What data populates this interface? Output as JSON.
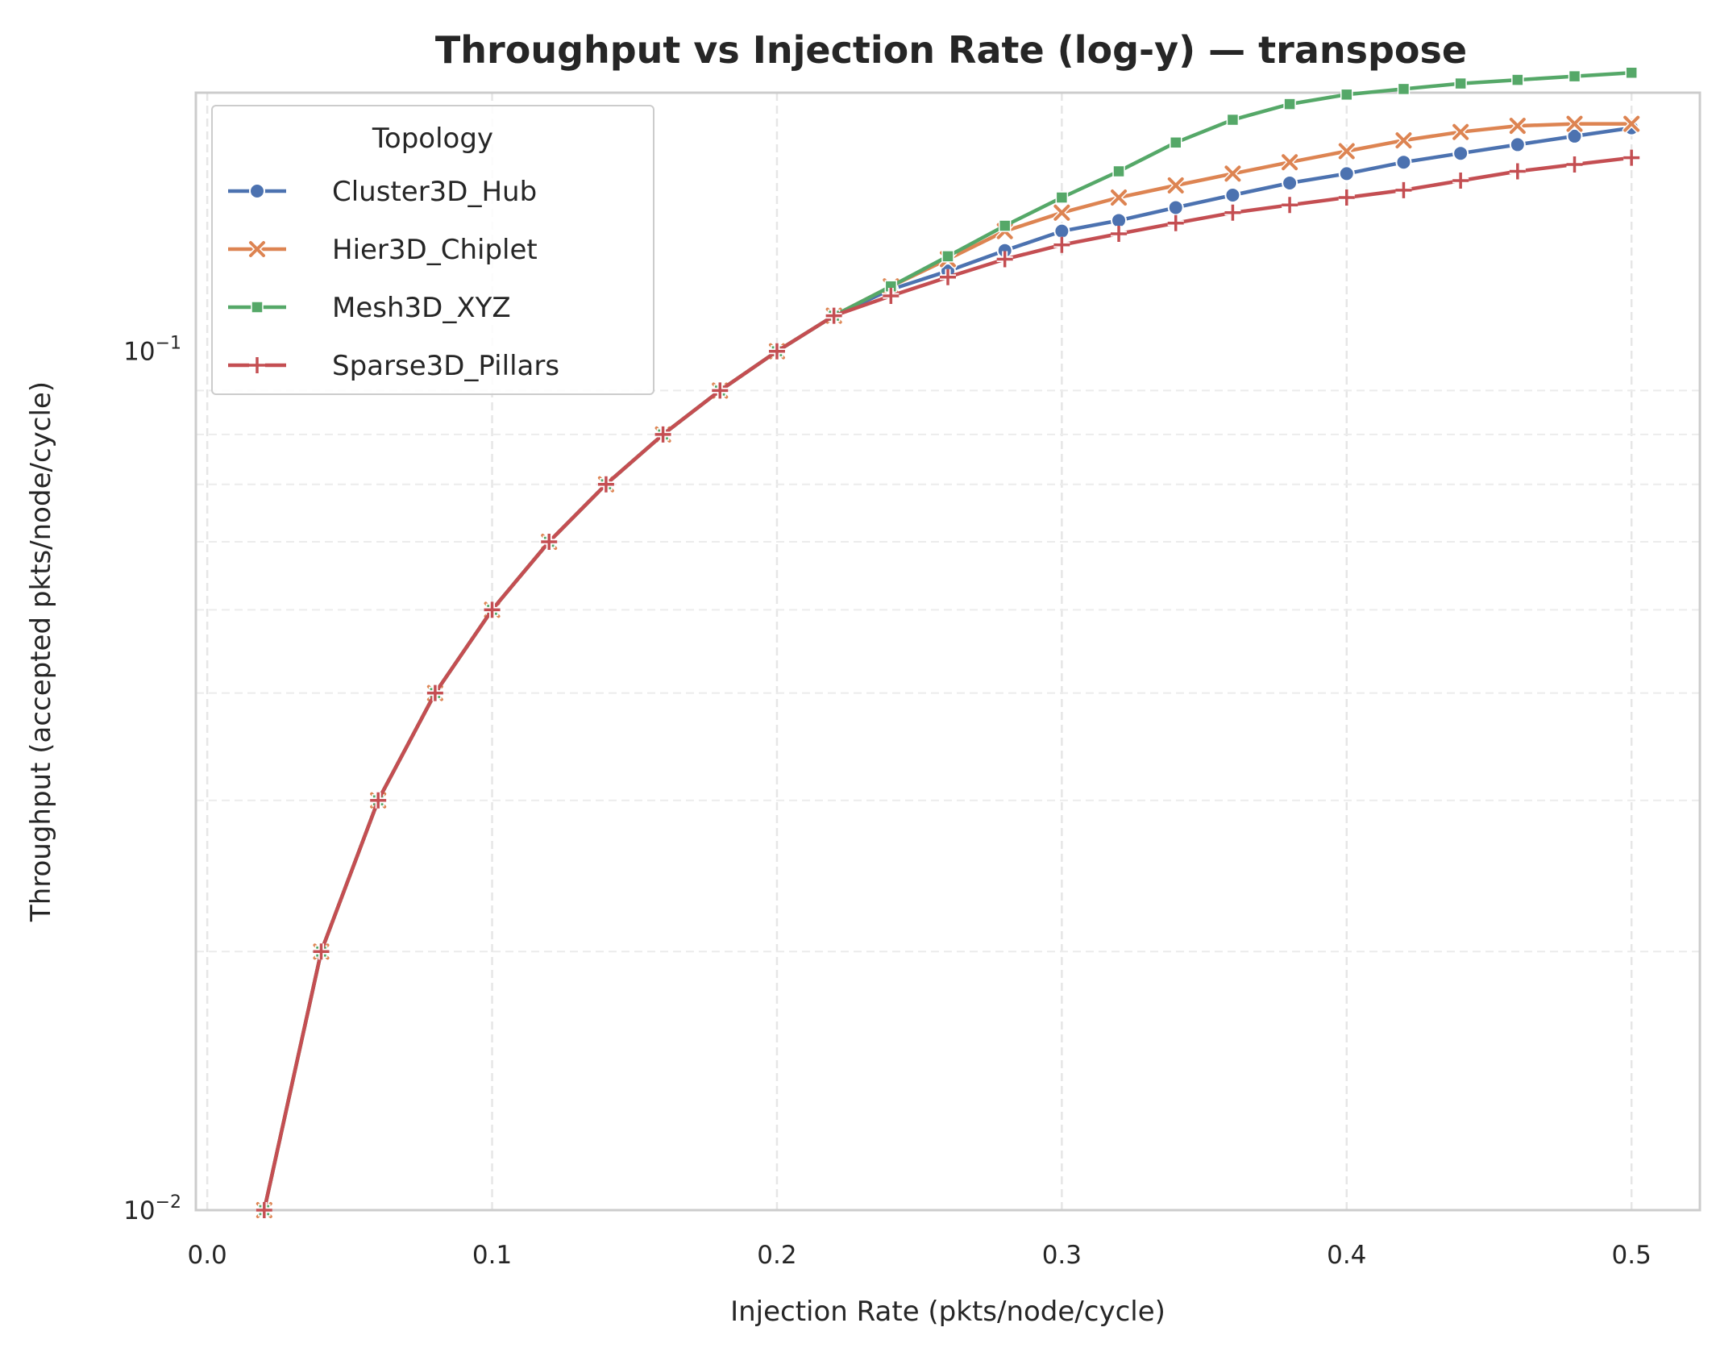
{
  "chart_data": {
    "type": "line",
    "title": "Throughput vs Injection Rate (log-y) — transpose",
    "xlabel": "Injection Rate (pkts/node/cycle)",
    "ylabel": "Throughput (accepted pkts/node/cycle)",
    "xlim": [
      -0.004,
      0.524
    ],
    "ylim": [
      0.01,
      0.2
    ],
    "yscale": "log",
    "grid": true,
    "x_ticks": [
      0.0,
      0.1,
      0.2,
      0.3,
      0.4,
      0.5
    ],
    "x_tick_labels": [
      "0.0",
      "0.1",
      "0.2",
      "0.3",
      "0.4",
      "0.5"
    ],
    "y_tick_labels": [
      {
        "value": 0.1,
        "base": "10",
        "exp": "−1"
      },
      {
        "value": 0.01,
        "base": "10",
        "exp": "−2"
      }
    ],
    "legend": {
      "title": "Topology",
      "placement": "top-left"
    },
    "x": [
      0.02,
      0.04,
      0.06,
      0.08,
      0.1,
      0.12,
      0.14,
      0.16,
      0.18,
      0.2,
      0.22,
      0.24,
      0.26,
      0.28,
      0.3,
      0.32,
      0.34,
      0.36,
      0.38,
      0.4,
      0.42,
      0.44,
      0.46,
      0.48,
      0.5
    ],
    "series": [
      {
        "name": "Cluster3D_Hub",
        "color": "#4c72b0",
        "marker": "circle",
        "values": [
          0.01,
          0.02,
          0.03,
          0.04,
          0.05,
          0.06,
          0.07,
          0.08,
          0.09,
          0.1,
          0.11,
          0.118,
          0.124,
          0.131,
          0.138,
          0.142,
          0.147,
          0.152,
          0.157,
          0.161,
          0.166,
          0.17,
          0.174,
          0.178,
          0.182
        ]
      },
      {
        "name": "Hier3D_Chiplet",
        "color": "#dd8452",
        "marker": "x",
        "values": [
          0.01,
          0.02,
          0.03,
          0.04,
          0.05,
          0.06,
          0.07,
          0.08,
          0.09,
          0.1,
          0.11,
          0.119,
          0.128,
          0.138,
          0.145,
          0.151,
          0.156,
          0.161,
          0.166,
          0.171,
          0.176,
          0.18,
          0.183,
          0.184,
          0.184
        ]
      },
      {
        "name": "Mesh3D_XYZ",
        "color": "#55a868",
        "marker": "square",
        "values": [
          0.01,
          0.02,
          0.03,
          0.04,
          0.05,
          0.06,
          0.07,
          0.08,
          0.09,
          0.1,
          0.11,
          0.119,
          0.129,
          0.14,
          0.151,
          0.162,
          0.175,
          0.186,
          0.194,
          0.199,
          0.202,
          0.205,
          0.207,
          0.209,
          0.211
        ]
      },
      {
        "name": "Sparse3D_Pillars",
        "color": "#c44e52",
        "marker": "plus",
        "values": [
          0.01,
          0.02,
          0.03,
          0.04,
          0.05,
          0.06,
          0.07,
          0.08,
          0.09,
          0.1,
          0.11,
          0.116,
          0.122,
          0.128,
          0.133,
          0.137,
          0.141,
          0.145,
          0.148,
          0.151,
          0.154,
          0.158,
          0.162,
          0.165,
          0.168
        ]
      }
    ]
  }
}
